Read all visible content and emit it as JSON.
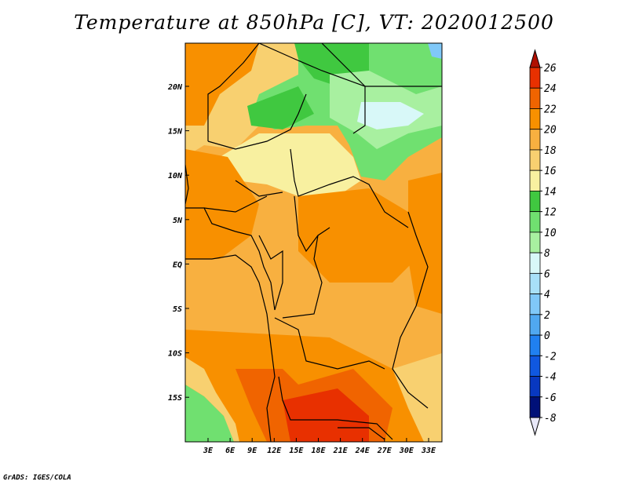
{
  "title": "Temperature at 850hPa [C], VT: 2020012500",
  "credit": "GrADS: IGES/COLA",
  "map": {
    "lon_ticks": [
      "3E",
      "6E",
      "9E",
      "12E",
      "15E",
      "18E",
      "21E",
      "24E",
      "27E",
      "30E",
      "33E"
    ],
    "lat_ticks": [
      "20N",
      "15N",
      "10N",
      "5N",
      "EQ",
      "5S",
      "10S",
      "15S"
    ]
  },
  "colorbar": {
    "levels": [
      "26",
      "24",
      "22",
      "20",
      "18",
      "16",
      "14",
      "12",
      "10",
      "8",
      "6",
      "4",
      "2",
      "0",
      "-2",
      "-4",
      "-6",
      "-8"
    ],
    "colors": [
      "#b01000",
      "#e83000",
      "#f06400",
      "#f89000",
      "#f8b040",
      "#f8d070",
      "#f8f0a0",
      "#40c840",
      "#70e070",
      "#a8f0a0",
      "#d8f8f8",
      "#a8e0f8",
      "#80c8f8",
      "#50a8f0",
      "#2080f0",
      "#1058e0",
      "#0838c0",
      "#001078"
    ]
  },
  "palette": {
    "desert_green": "#40c840",
    "light_green": "#70e070",
    "pale_green": "#a8f0a0",
    "cyan": "#d8f8f8",
    "yellow": "#f8f0a0",
    "light_orange": "#f8d070",
    "orange": "#f8b040",
    "dark_orange": "#f89000",
    "red_orange": "#f06400",
    "red": "#e83000"
  }
}
